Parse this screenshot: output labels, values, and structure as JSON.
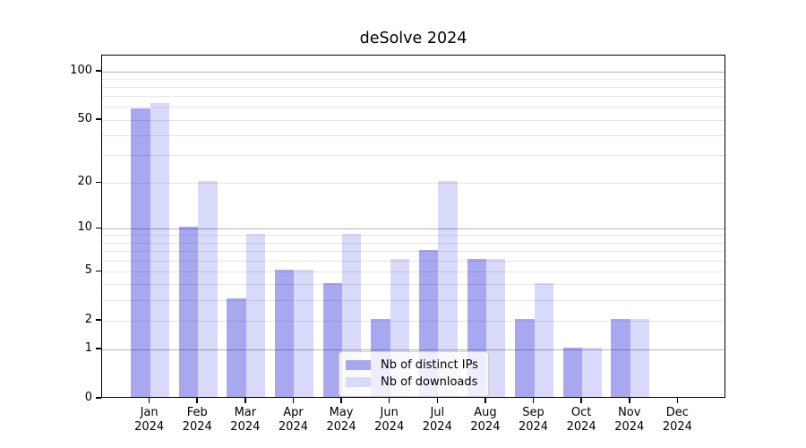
{
  "title": "deSolve 2024",
  "chart_data": {
    "type": "bar",
    "title": "deSolve 2024",
    "categories": [
      "Jan 2024",
      "Feb 2024",
      "Mar 2024",
      "Apr 2024",
      "May 2024",
      "Jun 2024",
      "Jul 2024",
      "Aug 2024",
      "Sep 2024",
      "Oct 2024",
      "Nov 2024",
      "Dec 2024"
    ],
    "months": [
      "Jan",
      "Feb",
      "Mar",
      "Apr",
      "May",
      "Jun",
      "Jul",
      "Aug",
      "Sep",
      "Oct",
      "Nov",
      "Dec"
    ],
    "year_label": "2024",
    "series": [
      {
        "name": "Nb of distinct IPs",
        "color": "rgba(0,0,215,0.34)",
        "legend_color": "#a8a8f1",
        "values": [
          58,
          10,
          3,
          5,
          4,
          2,
          7,
          6,
          2,
          1,
          2,
          0
        ]
      },
      {
        "name": "Nb of downloads",
        "color": "rgba(0,0,215,0.15)",
        "legend_color": "#d9d9f8",
        "values": [
          62,
          20,
          9,
          5,
          9,
          6,
          20,
          6,
          4,
          1,
          2,
          0
        ]
      }
    ],
    "xlabel": "",
    "ylabel": "",
    "y_scale": "log1p",
    "y_ticks": [
      0,
      1,
      2,
      5,
      10,
      20,
      50,
      100
    ],
    "ylim": [
      0,
      126
    ],
    "gridlines": {
      "major": [
        1,
        10,
        100
      ],
      "minor": [
        2,
        3,
        4,
        5,
        6,
        7,
        8,
        9,
        20,
        30,
        40,
        50,
        60,
        70,
        80,
        90
      ]
    },
    "grid": true,
    "legend_position": "lower center"
  },
  "colors": {
    "grid_major": "#b3b3b3",
    "grid_minor": "#e6e6e6",
    "axis": "#000000",
    "legend_border": "#cccccc"
  }
}
